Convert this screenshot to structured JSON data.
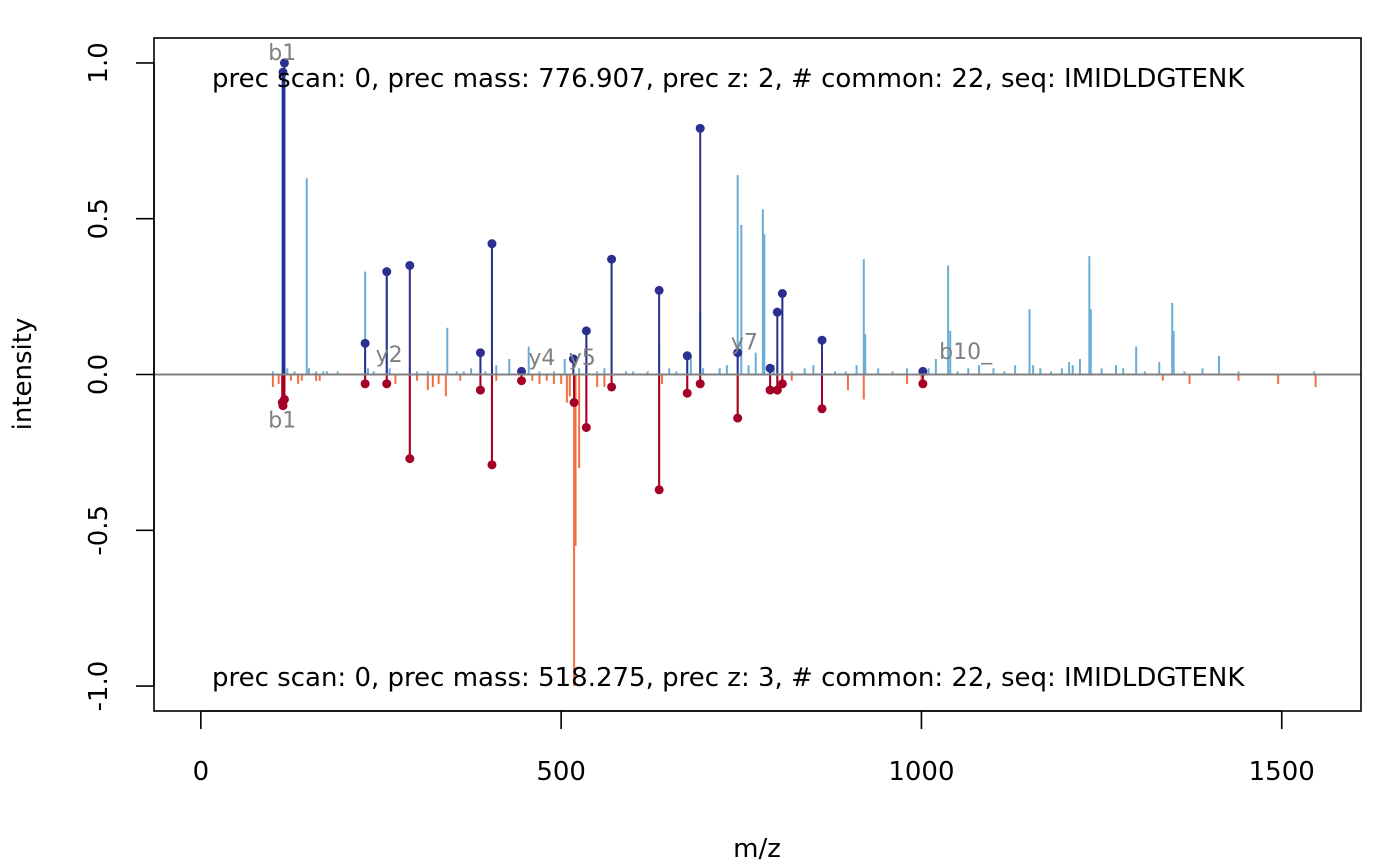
{
  "chart_data": {
    "type": "mirror-spectrum",
    "xlabel": "m/z",
    "ylabel": "intensity",
    "xlim": [
      -65,
      1610
    ],
    "ylim": [
      -1.08,
      1.08
    ],
    "x_ticks": [
      0,
      500,
      1000,
      1500
    ],
    "y_ticks": [
      -1.0,
      -0.5,
      0.0,
      0.5,
      1.0
    ],
    "y_tick_labels": [
      "-1.0",
      "-0.5",
      "0.0",
      "0.5",
      "1.0"
    ],
    "top_annotation": "prec scan: 0, prec mass: 776.907, prec z: 2, # common: 22, seq: IMIDLDGTENK",
    "bottom_annotation": "prec scan: 0, prec mass: 518.275, prec z: 3, # common: 22, seq: IMIDLDGTENK",
    "colors": {
      "top_peak": "#6aaed6",
      "bottom_peak": "#f46d43",
      "top_match": "#2b2f8f",
      "bottom_match": "#a50026",
      "zero_line": "#808080",
      "fragment_label": "#808080"
    },
    "top_peaks": [
      [
        100,
        0.01
      ],
      [
        113,
        0.97
      ],
      [
        116,
        1.0
      ],
      [
        120,
        0.02
      ],
      [
        130,
        0.01
      ],
      [
        147,
        0.63
      ],
      [
        150,
        0.02
      ],
      [
        160,
        0.01
      ],
      [
        170,
        0.01
      ],
      [
        175,
        0.01
      ],
      [
        190,
        0.01
      ],
      [
        228,
        0.33
      ],
      [
        232,
        0.02
      ],
      [
        240,
        0.01
      ],
      [
        258,
        0.33
      ],
      [
        262,
        0.02
      ],
      [
        290,
        0.02
      ],
      [
        300,
        0.01
      ],
      [
        315,
        0.01
      ],
      [
        342,
        0.15
      ],
      [
        355,
        0.01
      ],
      [
        365,
        0.01
      ],
      [
        375,
        0.02
      ],
      [
        388,
        0.06
      ],
      [
        395,
        0.01
      ],
      [
        404,
        0.41
      ],
      [
        410,
        0.03
      ],
      [
        428,
        0.05
      ],
      [
        445,
        0.01
      ],
      [
        455,
        0.09
      ],
      [
        470,
        0.01
      ],
      [
        490,
        0.01
      ],
      [
        505,
        0.05
      ],
      [
        517,
        0.05
      ],
      [
        525,
        0.02
      ],
      [
        535,
        0.13
      ],
      [
        550,
        0.01
      ],
      [
        560,
        0.02
      ],
      [
        570,
        0.36
      ],
      [
        590,
        0.01
      ],
      [
        600,
        0.01
      ],
      [
        620,
        0.01
      ],
      [
        636,
        0.1
      ],
      [
        650,
        0.02
      ],
      [
        660,
        0.01
      ],
      [
        675,
        0.04
      ],
      [
        680,
        0.06
      ],
      [
        693,
        0.2
      ],
      [
        697,
        0.02
      ],
      [
        720,
        0.02
      ],
      [
        730,
        0.03
      ],
      [
        745,
        0.64
      ],
      [
        750,
        0.48
      ],
      [
        760,
        0.03
      ],
      [
        770,
        0.07
      ],
      [
        780,
        0.53
      ],
      [
        782,
        0.45
      ],
      [
        795,
        0.03
      ],
      [
        800,
        0.05
      ],
      [
        807,
        0.27
      ],
      [
        820,
        0.01
      ],
      [
        838,
        0.02
      ],
      [
        850,
        0.03
      ],
      [
        862,
        0.05
      ],
      [
        880,
        0.01
      ],
      [
        895,
        0.01
      ],
      [
        910,
        0.03
      ],
      [
        920,
        0.37
      ],
      [
        922,
        0.13
      ],
      [
        940,
        0.02
      ],
      [
        960,
        0.01
      ],
      [
        980,
        0.02
      ],
      [
        1000,
        0.01
      ],
      [
        1010,
        0.02
      ],
      [
        1020,
        0.05
      ],
      [
        1037,
        0.35
      ],
      [
        1040,
        0.14
      ],
      [
        1050,
        0.01
      ],
      [
        1065,
        0.02
      ],
      [
        1080,
        0.03
      ],
      [
        1100,
        0.02
      ],
      [
        1115,
        0.01
      ],
      [
        1130,
        0.03
      ],
      [
        1150,
        0.21
      ],
      [
        1155,
        0.03
      ],
      [
        1165,
        0.02
      ],
      [
        1180,
        0.01
      ],
      [
        1195,
        0.02
      ],
      [
        1205,
        0.04
      ],
      [
        1210,
        0.03
      ],
      [
        1220,
        0.05
      ],
      [
        1233,
        0.38
      ],
      [
        1235,
        0.21
      ],
      [
        1250,
        0.02
      ],
      [
        1270,
        0.03
      ],
      [
        1280,
        0.02
      ],
      [
        1298,
        0.09
      ],
      [
        1310,
        0.01
      ],
      [
        1330,
        0.04
      ],
      [
        1348,
        0.23
      ],
      [
        1350,
        0.14
      ],
      [
        1365,
        0.01
      ],
      [
        1390,
        0.02
      ],
      [
        1413,
        0.06
      ],
      [
        1440,
        0.01
      ],
      [
        1545,
        0.01
      ]
    ],
    "bottom_peaks": [
      [
        100,
        0.04
      ],
      [
        108,
        0.03
      ],
      [
        113,
        0.1
      ],
      [
        116,
        0.11
      ],
      [
        125,
        0.02
      ],
      [
        135,
        0.03
      ],
      [
        140,
        0.02
      ],
      [
        160,
        0.02
      ],
      [
        165,
        0.02
      ],
      [
        228,
        0.03
      ],
      [
        258,
        0.04
      ],
      [
        270,
        0.03
      ],
      [
        290,
        0.27
      ],
      [
        300,
        0.02
      ],
      [
        315,
        0.05
      ],
      [
        322,
        0.04
      ],
      [
        330,
        0.03
      ],
      [
        340,
        0.07
      ],
      [
        360,
        0.02
      ],
      [
        388,
        0.05
      ],
      [
        404,
        0.29
      ],
      [
        410,
        0.02
      ],
      [
        445,
        0.03
      ],
      [
        460,
        0.02
      ],
      [
        470,
        0.03
      ],
      [
        480,
        0.02
      ],
      [
        490,
        0.03
      ],
      [
        500,
        0.03
      ],
      [
        508,
        0.09
      ],
      [
        512,
        0.07
      ],
      [
        518,
        1.0
      ],
      [
        520,
        0.55
      ],
      [
        525,
        0.3
      ],
      [
        535,
        0.18
      ],
      [
        550,
        0.04
      ],
      [
        560,
        0.04
      ],
      [
        570,
        0.04
      ],
      [
        636,
        0.37
      ],
      [
        640,
        0.03
      ],
      [
        675,
        0.06
      ],
      [
        693,
        0.03
      ],
      [
        745,
        0.14
      ],
      [
        790,
        0.05
      ],
      [
        800,
        0.05
      ],
      [
        807,
        0.03
      ],
      [
        820,
        0.02
      ],
      [
        862,
        0.11
      ],
      [
        898,
        0.05
      ],
      [
        920,
        0.08
      ],
      [
        980,
        0.03
      ],
      [
        1000,
        0.03
      ],
      [
        1335,
        0.02
      ],
      [
        1372,
        0.03
      ],
      [
        1440,
        0.02
      ],
      [
        1495,
        0.03
      ],
      [
        1547,
        0.04
      ]
    ],
    "top_matches": [
      [
        114,
        0.97
      ],
      [
        116,
        1.0
      ],
      [
        228,
        0.1
      ],
      [
        258,
        0.33
      ],
      [
        290,
        0.35
      ],
      [
        388,
        0.07
      ],
      [
        404,
        0.42
      ],
      [
        445,
        0.01
      ],
      [
        517,
        0.05
      ],
      [
        535,
        0.14
      ],
      [
        570,
        0.37
      ],
      [
        636,
        0.27
      ],
      [
        675,
        0.06
      ],
      [
        693,
        0.79
      ],
      [
        745,
        0.07
      ],
      [
        790,
        0.02
      ],
      [
        800,
        0.2
      ],
      [
        807,
        0.26
      ],
      [
        862,
        0.11
      ],
      [
        1002,
        0.01
      ]
    ],
    "bottom_matches": [
      [
        113,
        0.09
      ],
      [
        114,
        0.1
      ],
      [
        116,
        0.08
      ],
      [
        228,
        0.03
      ],
      [
        258,
        0.03
      ],
      [
        290,
        0.27
      ],
      [
        388,
        0.05
      ],
      [
        404,
        0.29
      ],
      [
        445,
        0.02
      ],
      [
        518,
        0.09
      ],
      [
        535,
        0.17
      ],
      [
        570,
        0.04
      ],
      [
        636,
        0.37
      ],
      [
        675,
        0.06
      ],
      [
        693,
        0.03
      ],
      [
        745,
        0.14
      ],
      [
        790,
        0.05
      ],
      [
        800,
        0.05
      ],
      [
        807,
        0.03
      ],
      [
        862,
        0.11
      ],
      [
        1002,
        0.03
      ]
    ],
    "top_fragment_labels": [
      {
        "text": "b1",
        "x": 113,
        "y": 1.01
      },
      {
        "text": "y2",
        "x": 262,
        "y": 0.04
      },
      {
        "text": "y4",
        "x": 474,
        "y": 0.03
      },
      {
        "text": "y5",
        "x": 530,
        "y": 0.03
      },
      {
        "text": "y7",
        "x": 755,
        "y": 0.08
      },
      {
        "text": "b10_",
        "x": 1044,
        "y": 0.05
      }
    ],
    "bottom_fragment_labels": [
      {
        "text": "b1",
        "x": 113,
        "y": -0.17
      }
    ]
  }
}
